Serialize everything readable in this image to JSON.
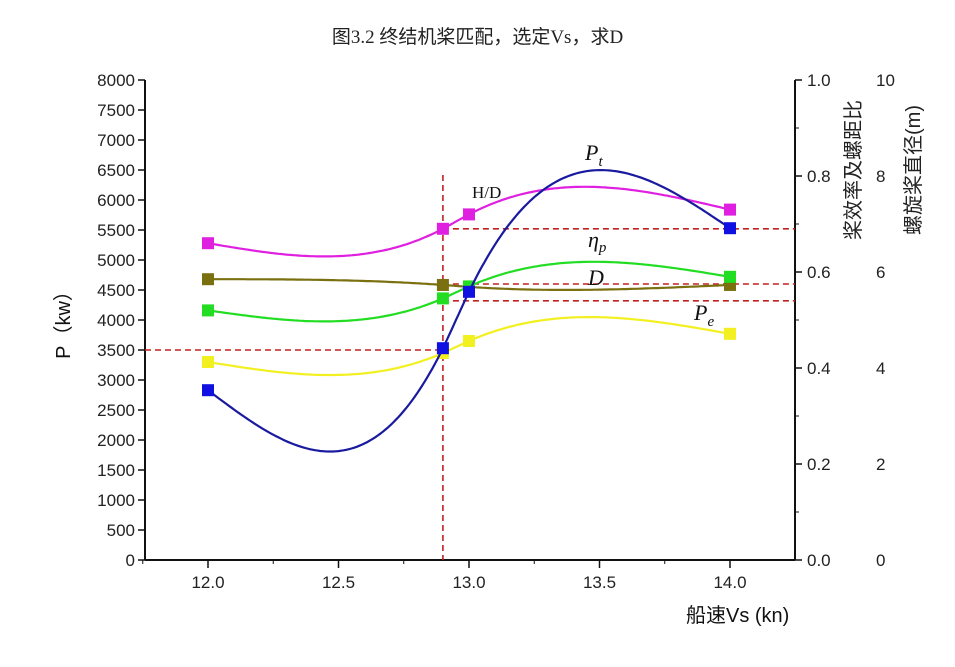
{
  "chart_data": {
    "type": "line",
    "title": "图3.2 终结机桨匹配，选定Vs，求D",
    "xlabel": "船速Vs (kn)",
    "ylabel_left": "P（kw）",
    "ylabel_right1": "桨效率及螺距比",
    "ylabel_right2": "螺旋桨直径(m)",
    "xlim": [
      11.76,
      14.25
    ],
    "ylim_left": [
      0,
      8000
    ],
    "ylim_right1": [
      0,
      1.0
    ],
    "ylim_right2": [
      0,
      10
    ],
    "x_ticks": [
      "12.0",
      "12.5",
      "13.0",
      "13.5",
      "14.0"
    ],
    "y_left_ticks": [
      "0",
      "500",
      "1000",
      "1500",
      "2000",
      "2500",
      "3000",
      "3500",
      "4000",
      "4500",
      "5000",
      "5500",
      "6000",
      "6500",
      "7000",
      "7500",
      "8000"
    ],
    "y_right1_ticks": [
      "0.0",
      "0.2",
      "0.4",
      "0.6",
      "0.8",
      "1.0"
    ],
    "y_right2_ticks": [
      "0",
      "2",
      "4",
      "6",
      "8",
      "10"
    ],
    "series": [
      {
        "name": "H/D",
        "label": "H/D",
        "axis": "right1",
        "color": "#e020e0",
        "x": [
          12.0,
          12.9,
          13.0,
          14.0
        ],
        "values": [
          0.66,
          0.69,
          0.72,
          0.73
        ]
      },
      {
        "name": "D",
        "label": "D",
        "axis": "right2",
        "color": "#7a7010",
        "x": [
          12.0,
          12.9,
          13.0,
          14.0
        ],
        "values": [
          5.85,
          5.73,
          5.69,
          5.73
        ]
      },
      {
        "name": "ηp",
        "label": "ηp",
        "axis": "right1",
        "color": "#22dd22",
        "x": [
          12.0,
          12.9,
          13.0,
          14.0
        ],
        "values": [
          0.52,
          0.545,
          0.57,
          0.59
        ]
      },
      {
        "name": "Pe",
        "label": "Pe",
        "axis": "left",
        "color": "#f2f020",
        "x": [
          12.0,
          12.9,
          13.0,
          14.0
        ],
        "values": [
          3300,
          3450,
          3650,
          3770
        ]
      },
      {
        "name": "Pt",
        "label": "Pt",
        "axis": "left",
        "color": "#1a1aa0",
        "marker": "#1010e0",
        "x": [
          12.0,
          12.9,
          13.0,
          14.0
        ],
        "values": [
          2830,
          3530,
          4470,
          5530
        ]
      }
    ],
    "reference_lines": {
      "vertical_x": 12.9,
      "left_P": 3500,
      "right_HD": 0.69,
      "right_D": 5.75,
      "right_eta": 0.54
    },
    "grid": false,
    "legend": "inline labels"
  }
}
